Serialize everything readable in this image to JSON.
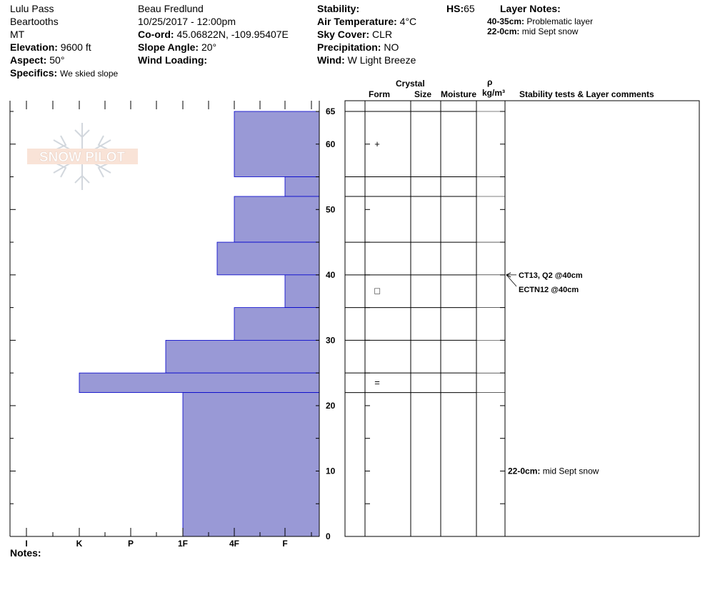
{
  "header": {
    "location": "Lulu Pass",
    "range": "Beartooths",
    "state": "MT",
    "elevation_label": "Elevation:",
    "elevation": "9600 ft",
    "aspect_label": "Aspect:",
    "aspect": "50°",
    "specifics_label": "Specifics:",
    "specifics": "We skied slope",
    "observer": "Beau  Fredlund",
    "datetime": "10/25/2017 - 12:00pm",
    "coord_label": "Co-ord:",
    "coord": "45.06822N, -109.95407E",
    "slope_label": "Slope Angle:",
    "slope": "20°",
    "wind_loading_label": "Wind Loading:",
    "wind_loading": "",
    "stability_label": "Stability:",
    "stability": "",
    "air_temp_label": "Air Temperature:",
    "air_temp": "4°C",
    "sky_label": "Sky Cover:",
    "sky": "CLR",
    "precip_label": "Precipitation:",
    "precip": "NO",
    "wind_label": "Wind:",
    "wind": "W Light Breeze",
    "hs_label": "HS:",
    "hs": "65",
    "layer_notes_title": "Layer Notes:",
    "layer_notes": [
      {
        "label": "40-35cm:",
        "text": "Problematic layer"
      },
      {
        "label": "22-0cm:",
        "text": "mid Sept snow"
      }
    ]
  },
  "logo": {
    "text": "SNOW PILOT"
  },
  "columns": {
    "crystal": "Crystal",
    "form": "Form",
    "size": "Size",
    "moisture": "Moisture",
    "rho": "ρ",
    "density_unit": "kg/m³",
    "stability": "Stability tests & Layer comments"
  },
  "notes_label": "Notes:",
  "chart_data": {
    "type": "bar",
    "orientation": "horizontal",
    "y_axis": {
      "label": "",
      "range": [
        0,
        65
      ],
      "ticks": [
        0,
        10,
        20,
        30,
        40,
        50,
        60,
        65
      ]
    },
    "x_axis": {
      "labels": [
        "I",
        "K",
        "P",
        "1F",
        "4F",
        "F"
      ],
      "direction": "hardness increases to the left"
    },
    "bar_color": "#9999d6",
    "layers": [
      {
        "top": 65,
        "bottom": 55,
        "hardness": "4F"
      },
      {
        "top": 55,
        "bottom": 52,
        "hardness": "F+"
      },
      {
        "top": 52,
        "bottom": 45,
        "hardness": "4F"
      },
      {
        "top": 45,
        "bottom": 40,
        "hardness": "4F+"
      },
      {
        "top": 40,
        "bottom": 35,
        "hardness": "F+"
      },
      {
        "top": 35,
        "bottom": 30,
        "hardness": "4F"
      },
      {
        "top": 30,
        "bottom": 25,
        "hardness": "1F+"
      },
      {
        "top": 25,
        "bottom": 22,
        "hardness": "K"
      },
      {
        "top": 22,
        "bottom": 0,
        "hardness": "1F"
      }
    ],
    "crystal_forms": [
      {
        "height": 60,
        "symbol": "+"
      },
      {
        "height": 37.5,
        "symbol": "□"
      },
      {
        "height": 23.5,
        "symbol": "="
      }
    ],
    "stability_tests": [
      {
        "depth": 40,
        "text": "CT13, Q2 @40cm"
      },
      {
        "depth": 40,
        "text": "ECTN12 @40cm"
      }
    ],
    "layer_comments": [
      {
        "depth": 10,
        "label": "22-0cm:",
        "text": "mid Sept snow"
      }
    ]
  }
}
